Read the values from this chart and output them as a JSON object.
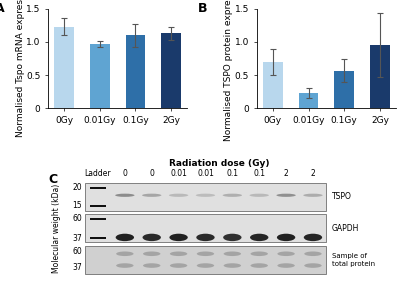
{
  "panel_A": {
    "label": "A",
    "categories": [
      "0Gy",
      "0.01Gy",
      "0.1Gy",
      "2Gy"
    ],
    "values": [
      1.23,
      0.97,
      1.1,
      1.13
    ],
    "errors": [
      0.13,
      0.05,
      0.17,
      0.1
    ],
    "colors": [
      "#b8d7ed",
      "#5fa4d2",
      "#2e6fa8",
      "#1a3a6b"
    ],
    "ylabel": "Normalised Tspo mRNA expression",
    "ylim": [
      0,
      1.5
    ],
    "yticks": [
      0.0,
      0.5,
      1.0,
      1.5
    ]
  },
  "panel_B": {
    "label": "B",
    "categories": [
      "0Gy",
      "0.01Gy",
      "0.1Gy",
      "2Gy"
    ],
    "values": [
      0.7,
      0.23,
      0.57,
      0.95
    ],
    "errors": [
      0.2,
      0.08,
      0.18,
      0.48
    ],
    "colors": [
      "#b8d7ed",
      "#5fa4d2",
      "#2e6fa8",
      "#1a3a6b"
    ],
    "ylabel": "Normalised TSPO protein expression",
    "ylim": [
      0,
      1.5
    ],
    "yticks": [
      0.0,
      0.5,
      1.0,
      1.5
    ]
  },
  "panel_C": {
    "label": "C",
    "radiation_dose_label": "Radiation dose (Gy)",
    "ylabel": "Molecular weight (kDa)",
    "ladder_label": "Ladder",
    "dose_labels": [
      "0",
      "0",
      "0.01",
      "0.01",
      "0.1",
      "0.1",
      "2",
      "2"
    ],
    "right_labels": [
      "TSPO",
      "GAPDH",
      "Sample of\ntotal protein"
    ],
    "blot_bg": "#e0e0e0",
    "total_bg": "#d0d0d0",
    "ladder_color": "#111111",
    "tspo_band_color": "#606060",
    "gapdh_band_color": "#111111",
    "total_band_color": "#888888"
  },
  "background_color": "#ffffff",
  "bar_width": 0.55,
  "errorbar_color": "#555555",
  "axis_fontsize": 6.5,
  "tick_fontsize": 6.5,
  "panel_label_fontsize": 9,
  "blot_fontsize": 5.5,
  "blot_mw_fontsize": 5.5
}
